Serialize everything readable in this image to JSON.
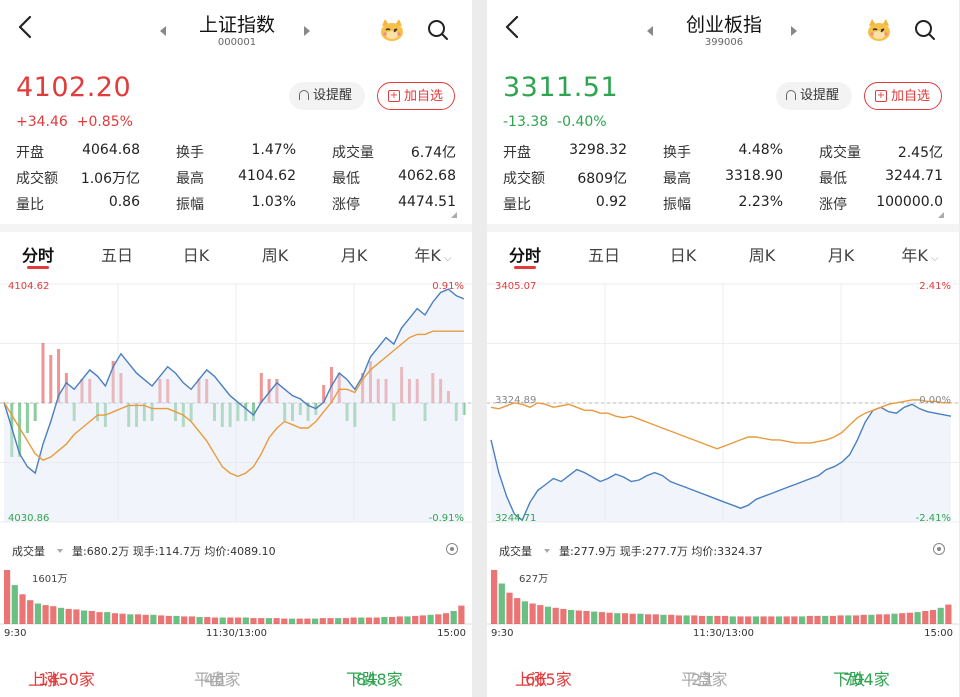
{
  "panels": [
    {
      "title": "上证指数",
      "code": "000001",
      "price": "4102.20",
      "change": "+34.46",
      "change_pct": "+0.85%",
      "trend": "up",
      "alert_label": "设提醒",
      "watch_label": "加自选",
      "stats": [
        [
          {
            "label": "开盘",
            "value": "4064.68",
            "color": "green"
          },
          {
            "label": "换手",
            "value": "1.47%",
            "color": "normal"
          },
          {
            "label": "成交量",
            "value": "6.74亿",
            "color": "normal"
          }
        ],
        [
          {
            "label": "成交额",
            "value": "1.06万亿",
            "color": "normal"
          },
          {
            "label": "最高",
            "value": "4104.62",
            "color": "red"
          },
          {
            "label": "最低",
            "value": "4062.68",
            "color": "green"
          }
        ],
        [
          {
            "label": "量比",
            "value": "0.86",
            "color": "normal"
          },
          {
            "label": "振幅",
            "value": "1.03%",
            "color": "normal"
          },
          {
            "label": "涨停",
            "value": "4474.51",
            "color": "red"
          }
        ]
      ],
      "tabs": [
        "分时",
        "五日",
        "日K",
        "周K",
        "月K",
        "年K"
      ],
      "active_tab": 0,
      "axis": {
        "top_left": "4104.62",
        "top_right": "0.91%",
        "mid_left": "",
        "mid_right": "",
        "bottom_left": "4030.86",
        "bottom_right": "-0.91%"
      },
      "volume_label": "成交量",
      "volume_info": "量:680.2万  现手:114.7万  均价:4089.10",
      "volume_max": "1601万",
      "times": [
        "9:30",
        "11:30/13:00",
        "15:00"
      ],
      "footer": {
        "up_label": "上涨",
        "up_count": "1450家",
        "flat_label": "平盘",
        "flat_count": "46家",
        "down_label": "下跌",
        "down_count": "848家"
      },
      "chart_data": {
        "type": "line",
        "ylim": [
          4030.86,
          4104.62
        ],
        "prev_close": 4067.74,
        "series": [
          {
            "values": [
              4068,
              4060,
              4052,
              4048,
              4046,
              4055,
              4062,
              4070,
              4074,
              4072,
              4075,
              4078,
              4076,
              4073,
              4079,
              4083,
              4080,
              4077,
              4075,
              4073,
              4076,
              4079,
              4077,
              4074,
              4072,
              4075,
              4078,
              4076,
              4073,
              4070,
              4068,
              4066,
              4064,
              4068,
              4071,
              4074,
              4072,
              4070,
              4069,
              4067,
              4066,
              4068,
              4073,
              4077,
              4075,
              4072,
              4076,
              4082,
              4085,
              4088,
              4086,
              4091,
              4094,
              4097,
              4095,
              4099,
              4102,
              4103,
              4101,
              4100
            ]
          },
          {
            "values": [
              4068,
              4064,
              4060,
              4056,
              4052,
              4050,
              4051,
              4053,
              4055,
              4058,
              4060,
              4062,
              4064,
              4064,
              4065,
              4066,
              4067,
              4067,
              4067,
              4066,
              4066,
              4066,
              4065,
              4064,
              4062,
              4059,
              4056,
              4052,
              4048,
              4046,
              4045,
              4046,
              4048,
              4052,
              4057,
              4060,
              4062,
              4061,
              4060,
              4060,
              4062,
              4065,
              4068,
              4072,
              4072,
              4071,
              4075,
              4078,
              4080,
              4082,
              4084,
              4086,
              4088,
              4089,
              4089,
              4090,
              4090,
              4090,
              4090,
              4090
            ]
          }
        ],
        "volume": [
          100,
          72,
          55,
          44,
          38,
          35,
          33,
          30,
          28,
          27,
          25,
          24,
          22,
          22,
          20,
          19,
          18,
          18,
          17,
          17,
          16,
          15,
          15,
          14,
          14,
          13,
          13,
          12,
          12,
          12,
          12,
          12,
          11,
          11,
          11,
          11,
          10,
          10,
          10,
          10,
          10,
          11,
          11,
          11,
          11,
          12,
          12,
          12,
          12,
          13,
          13,
          14,
          14,
          15,
          16,
          17,
          18,
          20,
          24,
          34
        ]
      }
    },
    {
      "title": "创业板指",
      "code": "399006",
      "price": "3311.51",
      "change": "-13.38",
      "change_pct": "-0.40%",
      "trend": "down",
      "alert_label": "设提醒",
      "watch_label": "加自选",
      "stats": [
        [
          {
            "label": "开盘",
            "value": "3298.32",
            "color": "green"
          },
          {
            "label": "换手",
            "value": "4.48%",
            "color": "normal"
          },
          {
            "label": "成交量",
            "value": "2.45亿",
            "color": "normal"
          }
        ],
        [
          {
            "label": "成交额",
            "value": "6809亿",
            "color": "normal"
          },
          {
            "label": "最高",
            "value": "3318.90",
            "color": "green"
          },
          {
            "label": "最低",
            "value": "3244.71",
            "color": "green"
          }
        ],
        [
          {
            "label": "量比",
            "value": "0.92",
            "color": "normal"
          },
          {
            "label": "振幅",
            "value": "2.23%",
            "color": "normal"
          },
          {
            "label": "涨停",
            "value": "100000.0",
            "color": "red"
          }
        ]
      ],
      "tabs": [
        "分时",
        "五日",
        "日K",
        "周K",
        "月K",
        "年K"
      ],
      "active_tab": 0,
      "axis": {
        "top_left": "3405.07",
        "top_right": "2.41%",
        "mid_left": "3324.89",
        "mid_right": "0.00%",
        "bottom_left": "3244.71",
        "bottom_right": "-2.41%"
      },
      "volume_label": "成交量",
      "volume_info": "量:277.9万  现手:277.7万  均价:3324.37",
      "volume_max": "627万",
      "times": [
        "9:30",
        "11:30/13:00",
        "15:00"
      ],
      "footer": {
        "up_label": "上涨",
        "up_count": "665家",
        "flat_label": "平盘",
        "flat_count": "23家",
        "down_label": "下跌",
        "down_count": "704家"
      },
      "chart_data": {
        "type": "line",
        "ylim": [
          3244.71,
          3405.07
        ],
        "prev_close": 3324.89,
        "series": [
          {
            "values": [
              3300,
              3278,
              3262,
              3250,
              3246,
              3258,
              3266,
              3270,
              3274,
              3272,
              3276,
              3280,
              3278,
              3275,
              3272,
              3274,
              3277,
              3275,
              3272,
              3273,
              3276,
              3278,
              3276,
              3272,
              3270,
              3268,
              3266,
              3264,
              3262,
              3260,
              3258,
              3256,
              3254,
              3256,
              3260,
              3262,
              3264,
              3266,
              3268,
              3270,
              3272,
              3274,
              3276,
              3280,
              3282,
              3285,
              3290,
              3300,
              3312,
              3320,
              3322,
              3319,
              3318,
              3322,
              3324,
              3321,
              3319,
              3318,
              3317,
              3316
            ]
          },
          {
            "values": [
              3322,
              3321,
              3323,
              3325,
              3324,
              3322,
              3325,
              3324,
              3322,
              3323,
              3324,
              3322,
              3320,
              3320,
              3318,
              3318,
              3316,
              3315,
              3316,
              3314,
              3312,
              3310,
              3308,
              3306,
              3304,
              3302,
              3300,
              3298,
              3296,
              3294,
              3296,
              3298,
              3300,
              3302,
              3302,
              3301,
              3300,
              3300,
              3299,
              3298,
              3298,
              3298,
              3299,
              3300,
              3302,
              3305,
              3310,
              3315,
              3318,
              3320,
              3322,
              3324,
              3325,
              3326,
              3327,
              3327,
              3326,
              3326,
              3325,
              3325
            ]
          }
        ],
        "volume": [
          100,
          75,
          58,
          48,
          42,
          38,
          35,
          32,
          30,
          28,
          26,
          25,
          24,
          23,
          22,
          21,
          20,
          20,
          19,
          19,
          18,
          18,
          17,
          17,
          16,
          16,
          16,
          15,
          15,
          15,
          15,
          14,
          14,
          14,
          14,
          14,
          14,
          14,
          14,
          14,
          14,
          15,
          15,
          15,
          15,
          16,
          16,
          16,
          17,
          17,
          18,
          18,
          19,
          20,
          21,
          22,
          24,
          26,
          30,
          36
        ]
      }
    }
  ],
  "colors": {
    "up": "#e23b3b",
    "down": "#2ea44f",
    "price_line": "#4a7fc1",
    "avg_line": "#e99a3c"
  }
}
